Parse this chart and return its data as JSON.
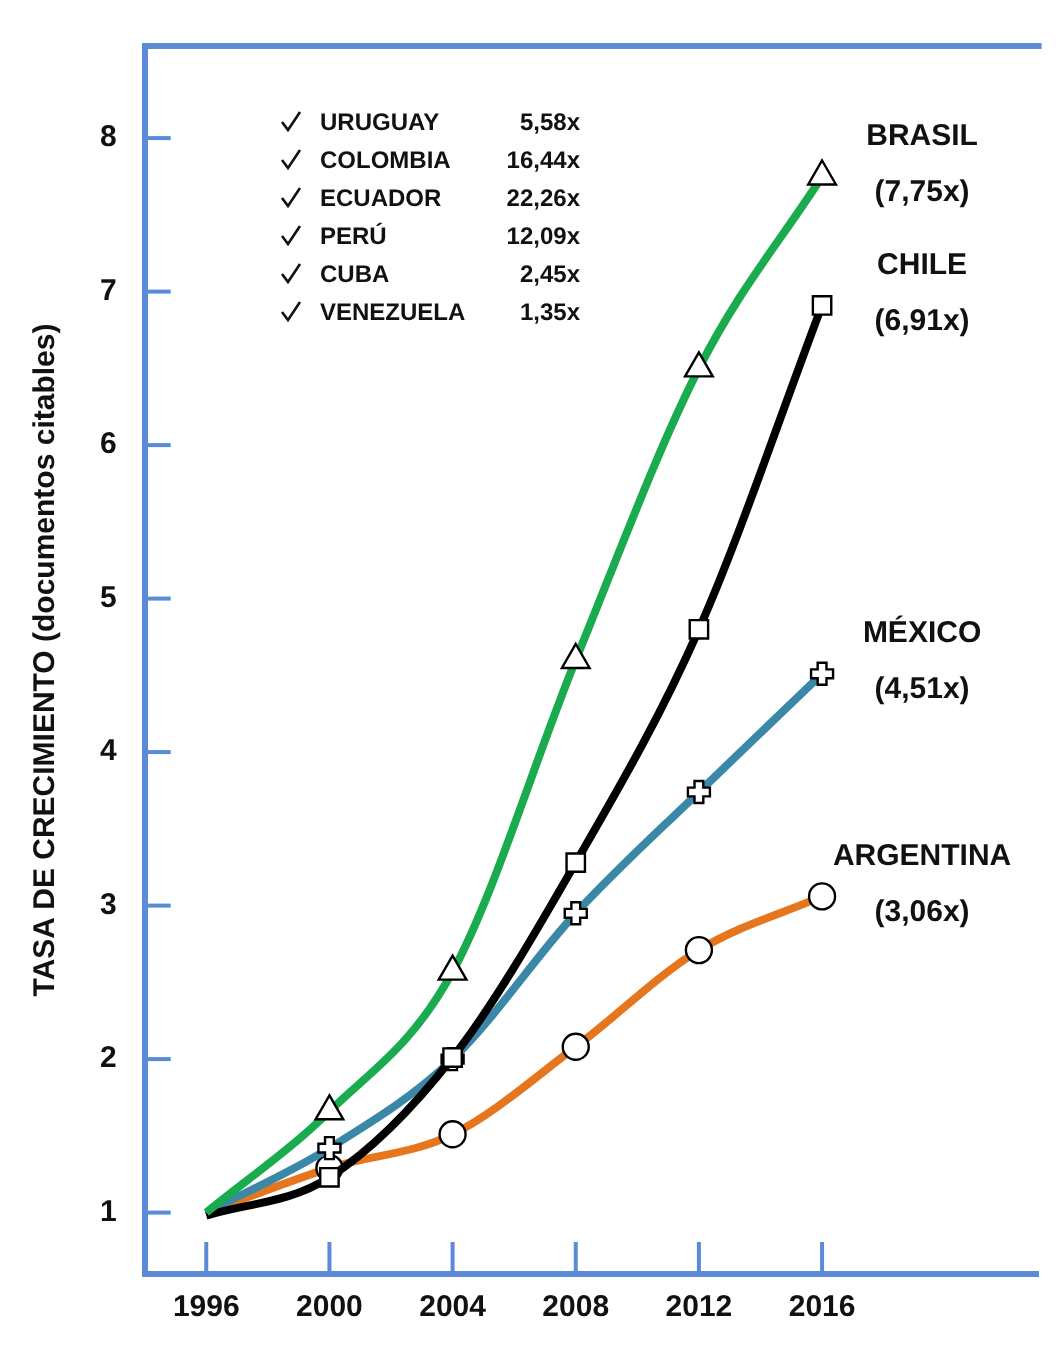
{
  "chart_data": {
    "type": "line",
    "ylabel": "TASA DE CRECIMIENTO (documentos citables)",
    "x": [
      1996,
      2000,
      2004,
      2008,
      2012,
      2016
    ],
    "xlim": [
      1994,
      2023
    ],
    "xticks": [
      1996,
      2000,
      2004,
      2008,
      2012,
      2016
    ],
    "ylim": [
      0.6,
      8.6
    ],
    "yticks": [
      1,
      2,
      3,
      4,
      5,
      6,
      7,
      8
    ],
    "grid": false,
    "legend": false,
    "series": [
      {
        "name": "BRASIL",
        "color": "#1aab4f",
        "marker": "triangle",
        "values": [
          1.0,
          1.66,
          2.57,
          4.6,
          6.5,
          7.75
        ],
        "value_labels": [
          null,
          null,
          null,
          null,
          null,
          "(7,75x)"
        ]
      },
      {
        "name": "CHILE",
        "color": "#000000",
        "marker": "square",
        "values": [
          0.98,
          1.23,
          2.01,
          3.28,
          4.8,
          6.91
        ],
        "value_labels": [
          null,
          null,
          null,
          null,
          null,
          "(6,91x)"
        ]
      },
      {
        "name": "MÉXICO",
        "color": "#3a87a8",
        "marker": "cross",
        "values": [
          1.0,
          1.42,
          2.0,
          2.95,
          3.74,
          4.51
        ],
        "value_labels": [
          null,
          null,
          null,
          null,
          null,
          "(4,51x)"
        ]
      },
      {
        "name": "ARGENTINA",
        "color": "#e6761e",
        "marker": "circle",
        "values": [
          1.0,
          1.29,
          1.51,
          2.08,
          2.71,
          3.06
        ],
        "value_labels": [
          null,
          null,
          null,
          null,
          null,
          "(3,06x)"
        ]
      }
    ],
    "annotations": [
      "URUGUAY 5,58x",
      "COLOMBIA 16,44x",
      "ECUADOR 22,26x",
      "PERÚ 12,09x",
      "CUBA 2,45x",
      "VENEZUELA 1,35x"
    ]
  }
}
